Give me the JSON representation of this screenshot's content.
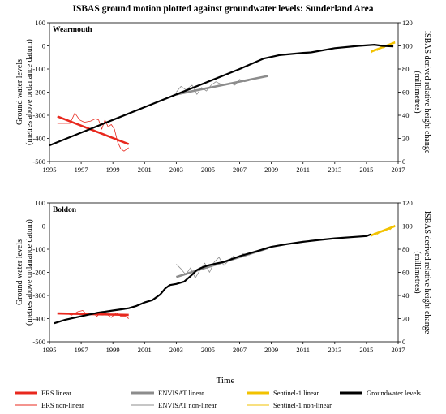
{
  "chart_title": "ISBAS ground motion plotted against groundwater levels: Sunderland Area",
  "x_axis_title": "Time",
  "left_axis_label_line1": "Ground water levels",
  "left_axis_label_line2": "(metres above ordanance datum)",
  "right_axis_label_line1": "ISBAS derived relative height change",
  "right_axis_label_line2": "(millimetres)",
  "colors": {
    "ers": "#e8281e",
    "envisat": "#8c8c8c",
    "sentinel": "#f2c200",
    "groundwater": "#000000"
  },
  "legend": [
    {
      "label": "ERS linear",
      "color": "#e8281e",
      "style": "thick"
    },
    {
      "label": "ENVISAT linear",
      "color": "#8c8c8c",
      "style": "thick"
    },
    {
      "label": "Sentinel-1 linear",
      "color": "#f2c200",
      "style": "thick"
    },
    {
      "label": "Groundwater levels",
      "color": "#000000",
      "style": "thick"
    },
    {
      "label": "ERS non-linear",
      "color": "#e8281e",
      "style": "thin"
    },
    {
      "label": "ENVISAT non-linear",
      "color": "#8c8c8c",
      "style": "thin"
    },
    {
      "label": "Sentinel-1 non-linear",
      "color": "#f2c200",
      "style": "thin"
    }
  ],
  "chart_data": [
    {
      "type": "line",
      "panel_label": "Wearmouth",
      "xlim": [
        1995,
        2017
      ],
      "x_ticks": [
        "1995",
        "1997",
        "1999",
        "2001",
        "2003",
        "2005",
        "2007",
        "2009",
        "2011",
        "2013",
        "2015",
        "2017"
      ],
      "y_left_lim": [
        -500,
        100
      ],
      "y_left_ticks": [
        "100",
        "0",
        "-100",
        "-200",
        "-300",
        "-400",
        "-500"
      ],
      "y_right_lim": [
        0,
        120
      ],
      "y_right_ticks": [
        "120",
        "100",
        "80",
        "60",
        "40",
        "20",
        "0"
      ],
      "grid": false,
      "series": [
        {
          "name": "Groundwater levels",
          "axis": "left",
          "color": "#000000",
          "width": 2.2,
          "x": [
            1995.0,
            1997.0,
            1999.0,
            2001.0,
            2003.0,
            2005.0,
            2007.0,
            2008.5,
            2009.5,
            2011.0,
            2011.5,
            2013.0,
            2014.5,
            2015.5,
            2016.0,
            2016.7
          ],
          "y": [
            -430,
            -375,
            -320,
            -265,
            -210,
            -155,
            -100,
            -55,
            -40,
            -30,
            -28,
            -10,
            0,
            5,
            0,
            -2
          ]
        },
        {
          "name": "ERS linear",
          "axis": "right",
          "color": "#e8281e",
          "width": 2.6,
          "x": [
            1995.5,
            2000.0
          ],
          "y": [
            39,
            15
          ]
        },
        {
          "name": "ERS non-linear",
          "axis": "right",
          "color": "#e8281e",
          "width": 0.8,
          "x": [
            1995.5,
            1996.3,
            1996.6,
            1996.9,
            1997.2,
            1997.6,
            1997.9,
            1998.1,
            1998.3,
            1998.5,
            1998.7,
            1998.9,
            1999.1,
            1999.3,
            1999.5,
            1999.7,
            2000.0
          ],
          "y": [
            33,
            33,
            42,
            36,
            34,
            35,
            37,
            36,
            28,
            36,
            30,
            32,
            28,
            17,
            11,
            9,
            12
          ]
        },
        {
          "name": "ENVISAT linear",
          "axis": "right",
          "color": "#8c8c8c",
          "width": 2.6,
          "x": [
            2003.0,
            2008.8
          ],
          "y": [
            58,
            74
          ]
        },
        {
          "name": "ENVISAT non-linear",
          "axis": "right",
          "color": "#8c8c8c",
          "width": 0.8,
          "x": [
            2003.0,
            2003.3,
            2003.6,
            2004.0,
            2004.3,
            2004.6,
            2004.9,
            2005.2,
            2005.5,
            2005.8,
            2006.1,
            2006.4,
            2006.7,
            2007.0,
            2007.3,
            2007.6,
            2008.0,
            2008.4,
            2008.8
          ],
          "y": [
            60,
            65,
            62,
            66,
            58,
            64,
            61,
            66,
            69,
            67,
            66,
            68,
            66,
            71,
            69,
            70,
            72,
            73,
            74
          ]
        },
        {
          "name": "Sentinel-1 linear",
          "axis": "right",
          "color": "#f2c200",
          "width": 2.6,
          "x": [
            2015.3,
            2016.8
          ],
          "y": [
            95,
            103
          ]
        },
        {
          "name": "Sentinel-1 non-linear",
          "axis": "right",
          "color": "#f2c200",
          "width": 0.8,
          "x": [
            2015.3,
            2015.5,
            2015.7,
            2015.9,
            2016.1,
            2016.3,
            2016.5,
            2016.8
          ],
          "y": [
            94,
            97,
            96,
            99,
            98,
            101,
            100,
            104
          ]
        }
      ]
    },
    {
      "type": "line",
      "panel_label": "Boldon",
      "xlim": [
        1995,
        2017
      ],
      "x_ticks": [
        "1995",
        "1997",
        "1999",
        "2001",
        "2003",
        "2005",
        "2007",
        "2009",
        "2011",
        "2013",
        "2015",
        "2017"
      ],
      "y_left_lim": [
        -500,
        100
      ],
      "y_left_ticks": [
        "100",
        "0",
        "-100",
        "-200",
        "-300",
        "-400",
        "-500"
      ],
      "y_right_lim": [
        0,
        120
      ],
      "y_right_ticks": [
        "120",
        "100",
        "80",
        "60",
        "40",
        "20",
        "0"
      ],
      "grid": false,
      "series": [
        {
          "name": "Groundwater levels",
          "axis": "left",
          "color": "#000000",
          "width": 2.2,
          "x": [
            1995.3,
            1996.0,
            1997.0,
            1998.0,
            1999.0,
            1999.5,
            2000.0,
            2000.5,
            2001.0,
            2001.5,
            2002.0,
            2002.3,
            2002.6,
            2003.0,
            2003.5,
            2004.0,
            2004.3,
            2004.6,
            2005.0,
            2005.5,
            2006.0,
            2007.0,
            2008.0,
            2009.0,
            2010.0,
            2011.0,
            2012.0,
            2013.0,
            2014.0,
            2015.0,
            2015.3
          ],
          "y": [
            -420,
            -405,
            -390,
            -375,
            -365,
            -360,
            -355,
            -345,
            -330,
            -320,
            -295,
            -270,
            -255,
            -250,
            -240,
            -210,
            -190,
            -180,
            -170,
            -162,
            -155,
            -130,
            -110,
            -90,
            -78,
            -68,
            -60,
            -53,
            -48,
            -43,
            -35
          ]
        },
        {
          "name": "ERS linear",
          "axis": "right",
          "color": "#e8281e",
          "width": 2.6,
          "x": [
            1995.5,
            2000.0
          ],
          "y": [
            24.5,
            23.2
          ]
        },
        {
          "name": "ERS non-linear",
          "axis": "right",
          "color": "#e8281e",
          "width": 0.8,
          "x": [
            1995.5,
            1996.0,
            1996.4,
            1996.8,
            1997.1,
            1997.4,
            1997.7,
            1998.0,
            1998.3,
            1998.6,
            1998.9,
            1999.2,
            1999.5,
            1999.8,
            2000.0
          ],
          "y": [
            24,
            25,
            23,
            26,
            27,
            23,
            25,
            22,
            26,
            24,
            21,
            25,
            22,
            22,
            20
          ]
        },
        {
          "name": "ENVISAT linear",
          "axis": "right",
          "color": "#8c8c8c",
          "width": 2.6,
          "x": [
            2003.0,
            2008.8
          ],
          "y": [
            56,
            81
          ]
        },
        {
          "name": "ENVISAT non-linear",
          "axis": "right",
          "color": "#8c8c8c",
          "width": 0.8,
          "x": [
            2003.0,
            2003.3,
            2003.6,
            2003.9,
            2004.2,
            2004.5,
            2004.8,
            2005.1,
            2005.4,
            2005.7,
            2006.0,
            2006.3,
            2006.6,
            2006.9,
            2007.2,
            2007.6,
            2008.0,
            2008.4,
            2008.8
          ],
          "y": [
            67,
            63,
            58,
            64,
            55,
            62,
            68,
            60,
            69,
            73,
            66,
            70,
            74,
            72,
            76,
            75,
            78,
            80,
            82
          ]
        },
        {
          "name": "Sentinel-1 linear",
          "axis": "right",
          "color": "#f2c200",
          "width": 2.6,
          "x": [
            2015.3,
            2016.8
          ],
          "y": [
            92,
            100
          ]
        },
        {
          "name": "Sentinel-1 non-linear",
          "axis": "right",
          "color": "#f2c200",
          "width": 0.8,
          "x": [
            2015.3,
            2015.5,
            2015.7,
            2015.9,
            2016.1,
            2016.3,
            2016.5,
            2016.8
          ],
          "y": [
            91,
            94,
            93,
            96,
            95,
            98,
            97,
            101
          ]
        }
      ]
    }
  ]
}
